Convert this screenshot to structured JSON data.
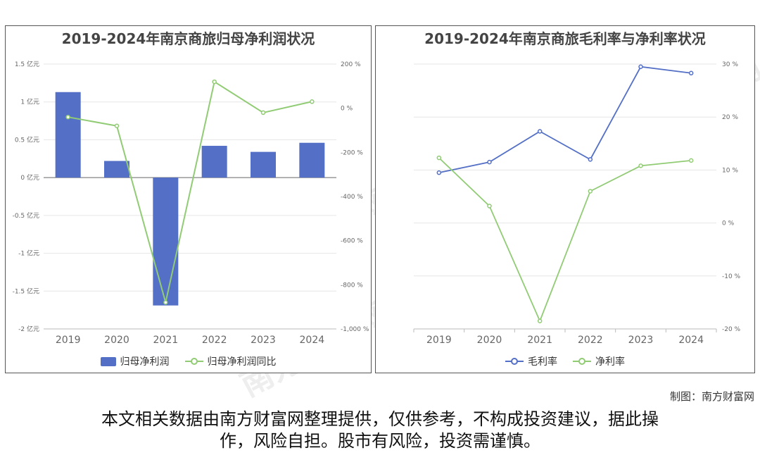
{
  "watermark": {
    "cn": "南方财富网",
    "en": "southmoney.com"
  },
  "credit": "制图：南方财富网",
  "disclaimer_line1": "本文相关数据由南方财富网整理提供，仅供参考，不构成投资建议，据此操",
  "disclaimer_line2": "作，风险自担。股市有风险，投资需谨慎。",
  "colors": {
    "blue": "#5470c6",
    "green": "#91cc75",
    "grid": "#e6e6e6",
    "axis": "#666666"
  },
  "chart_data": [
    {
      "type": "bar+line",
      "title": "2019-2024年南京商旅归母净利润状况",
      "categories": [
        "2019",
        "2020",
        "2021",
        "2022",
        "2023",
        "2024"
      ],
      "series": [
        {
          "name": "归母净利润",
          "type": "bar",
          "axis": "left",
          "values": [
            1.13,
            0.22,
            -1.69,
            0.42,
            0.34,
            0.46
          ]
        },
        {
          "name": "归母净利润同比",
          "type": "line",
          "axis": "right",
          "values": [
            -40,
            -80,
            -880,
            120,
            -20,
            30
          ]
        }
      ],
      "y_left": {
        "min": -2,
        "max": 1.5,
        "ticks": [
          1.5,
          1,
          0.5,
          0,
          -0.5,
          -1,
          -1.5,
          -2
        ],
        "tick_labels": [
          "1.5 亿元",
          "1 亿元",
          "0.5 亿元",
          "0 亿元",
          "-0.5 亿元",
          "-1 亿元",
          "-1.5 亿元",
          "-2 亿元"
        ]
      },
      "y_right": {
        "min": -1000,
        "max": 200,
        "ticks": [
          200,
          0,
          -200,
          -400,
          -600,
          -800,
          -1000
        ],
        "tick_labels": [
          "200 %",
          "0 %",
          "-200 %",
          "-400 %",
          "-600 %",
          "-800 %",
          "-1,000 %"
        ]
      },
      "grid": true,
      "legend": "bottom-center"
    },
    {
      "type": "line",
      "title": "2019-2024年南京商旅毛利率与净利率状况",
      "categories": [
        "2019",
        "2020",
        "2021",
        "2022",
        "2023",
        "2024"
      ],
      "series": [
        {
          "name": "毛利率",
          "color": "#5470c6",
          "values": [
            9.5,
            11.5,
            17.3,
            12.0,
            29.5,
            28.3
          ]
        },
        {
          "name": "净利率",
          "color": "#91cc75",
          "values": [
            12.3,
            3.2,
            -18.5,
            6.0,
            10.8,
            11.8
          ]
        }
      ],
      "y_right": {
        "min": -20,
        "max": 30,
        "ticks": [
          30,
          20,
          10,
          0,
          -10,
          -20
        ],
        "tick_labels": [
          "30 %",
          "20 %",
          "10 %",
          "0 %",
          "-10 %",
          "-20 %"
        ]
      },
      "grid": true,
      "legend": "bottom-center"
    }
  ]
}
